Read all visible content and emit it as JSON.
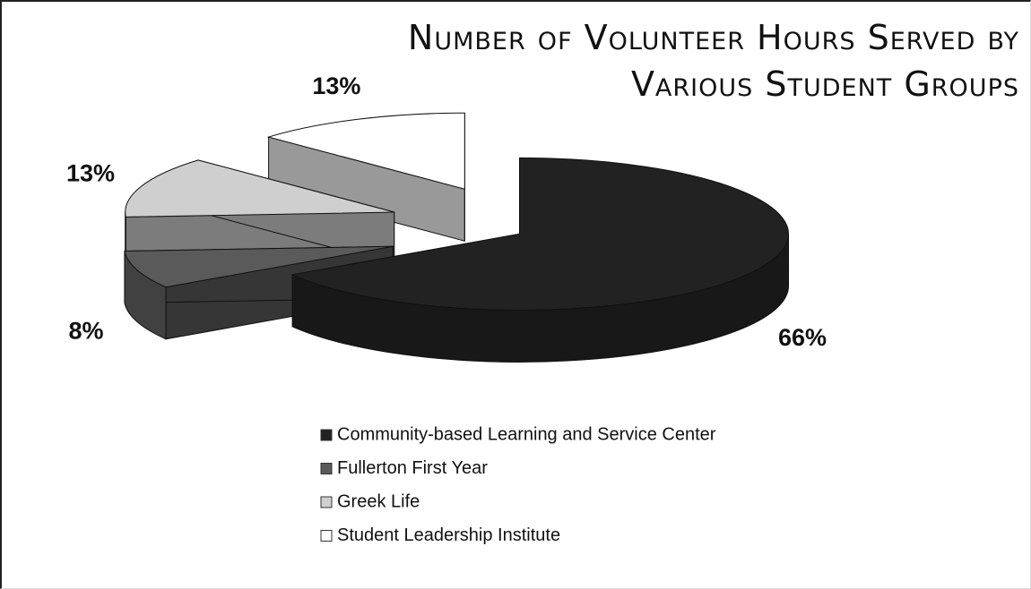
{
  "chart_data": {
    "type": "pie",
    "title": "Number of Volunteer Hours Served by Various Student Groups",
    "categories": [
      "Community-based Learning and Service Center",
      "Fullerton First Year",
      "Greek Life",
      "Student Leadership Institute"
    ],
    "values": [
      66,
      8,
      13,
      13
    ],
    "value_labels": [
      "66%",
      "8%",
      "13%",
      "13%"
    ],
    "colors": [
      "#222222",
      "#5a5a5a",
      "#cfcfcf",
      "#ffffff"
    ],
    "legend": "bottom"
  }
}
